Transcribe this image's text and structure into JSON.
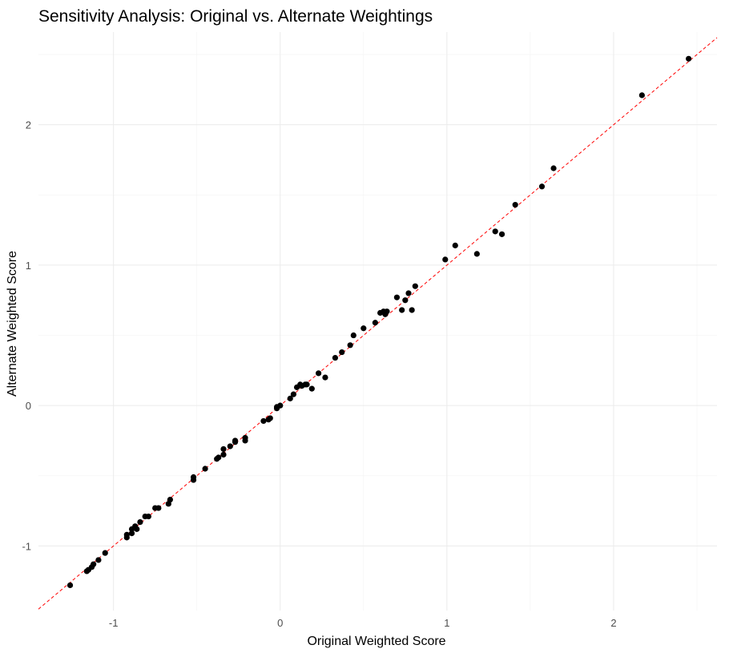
{
  "chart_data": {
    "type": "scatter",
    "title": "Sensitivity Analysis: Original vs. Alternate Weightings",
    "xlabel": "Original Weighted Score",
    "ylabel": "Alternate Weighted Score",
    "xlim": [
      -1.45,
      2.62
    ],
    "ylim": [
      -1.46,
      2.66
    ],
    "x_ticks": [
      -1,
      0,
      1,
      2
    ],
    "y_ticks": [
      -1,
      0,
      1,
      2
    ],
    "x_tick_labels": [
      "-1",
      "0",
      "1",
      "2"
    ],
    "y_tick_labels": [
      "-1",
      "0",
      "1",
      "2"
    ],
    "grid": true,
    "reference_line": {
      "slope": 1,
      "intercept": 0,
      "style": "dashed",
      "color": "#ff0000"
    },
    "point_color": "#000000",
    "points": [
      {
        "x": -1.26,
        "y": -1.28
      },
      {
        "x": -1.16,
        "y": -1.18
      },
      {
        "x": -1.15,
        "y": -1.17
      },
      {
        "x": -1.13,
        "y": -1.15
      },
      {
        "x": -1.12,
        "y": -1.13
      },
      {
        "x": -1.09,
        "y": -1.1
      },
      {
        "x": -1.05,
        "y": -1.05
      },
      {
        "x": -0.92,
        "y": -0.92
      },
      {
        "x": -0.92,
        "y": -0.94
      },
      {
        "x": -0.89,
        "y": -0.88
      },
      {
        "x": -0.89,
        "y": -0.91
      },
      {
        "x": -0.87,
        "y": -0.86
      },
      {
        "x": -0.86,
        "y": -0.88
      },
      {
        "x": -0.84,
        "y": -0.83
      },
      {
        "x": -0.81,
        "y": -0.79
      },
      {
        "x": -0.79,
        "y": -0.79
      },
      {
        "x": -0.75,
        "y": -0.73
      },
      {
        "x": -0.73,
        "y": -0.73
      },
      {
        "x": -0.66,
        "y": -0.67
      },
      {
        "x": -0.67,
        "y": -0.7
      },
      {
        "x": -0.52,
        "y": -0.51
      },
      {
        "x": -0.52,
        "y": -0.53
      },
      {
        "x": -0.45,
        "y": -0.45
      },
      {
        "x": -0.38,
        "y": -0.38
      },
      {
        "x": -0.37,
        "y": -0.37
      },
      {
        "x": -0.34,
        "y": -0.31
      },
      {
        "x": -0.34,
        "y": -0.35
      },
      {
        "x": -0.3,
        "y": -0.29
      },
      {
        "x": -0.27,
        "y": -0.25
      },
      {
        "x": -0.27,
        "y": -0.26
      },
      {
        "x": -0.21,
        "y": -0.23
      },
      {
        "x": -0.21,
        "y": -0.25
      },
      {
        "x": -0.1,
        "y": -0.11
      },
      {
        "x": -0.07,
        "y": -0.1
      },
      {
        "x": -0.06,
        "y": -0.09
      },
      {
        "x": -0.02,
        "y": -0.01
      },
      {
        "x": -0.02,
        "y": -0.02
      },
      {
        "x": 0.0,
        "y": 0.0
      },
      {
        "x": 0.06,
        "y": 0.05
      },
      {
        "x": 0.08,
        "y": 0.08
      },
      {
        "x": 0.1,
        "y": 0.13
      },
      {
        "x": 0.12,
        "y": 0.15
      },
      {
        "x": 0.13,
        "y": 0.14
      },
      {
        "x": 0.15,
        "y": 0.15
      },
      {
        "x": 0.16,
        "y": 0.15
      },
      {
        "x": 0.19,
        "y": 0.12
      },
      {
        "x": 0.23,
        "y": 0.23
      },
      {
        "x": 0.27,
        "y": 0.2
      },
      {
        "x": 0.33,
        "y": 0.34
      },
      {
        "x": 0.37,
        "y": 0.38
      },
      {
        "x": 0.42,
        "y": 0.43
      },
      {
        "x": 0.44,
        "y": 0.5
      },
      {
        "x": 0.5,
        "y": 0.55
      },
      {
        "x": 0.57,
        "y": 0.59
      },
      {
        "x": 0.6,
        "y": 0.66
      },
      {
        "x": 0.62,
        "y": 0.67
      },
      {
        "x": 0.63,
        "y": 0.65
      },
      {
        "x": 0.64,
        "y": 0.67
      },
      {
        "x": 0.7,
        "y": 0.77
      },
      {
        "x": 0.73,
        "y": 0.68
      },
      {
        "x": 0.75,
        "y": 0.75
      },
      {
        "x": 0.77,
        "y": 0.8
      },
      {
        "x": 0.79,
        "y": 0.68
      },
      {
        "x": 0.81,
        "y": 0.85
      },
      {
        "x": 0.99,
        "y": 1.04
      },
      {
        "x": 1.05,
        "y": 1.14
      },
      {
        "x": 1.18,
        "y": 1.08
      },
      {
        "x": 1.29,
        "y": 1.24
      },
      {
        "x": 1.33,
        "y": 1.22
      },
      {
        "x": 1.41,
        "y": 1.43
      },
      {
        "x": 1.57,
        "y": 1.56
      },
      {
        "x": 1.64,
        "y": 1.69
      },
      {
        "x": 2.17,
        "y": 2.21
      },
      {
        "x": 2.45,
        "y": 2.47
      }
    ]
  }
}
